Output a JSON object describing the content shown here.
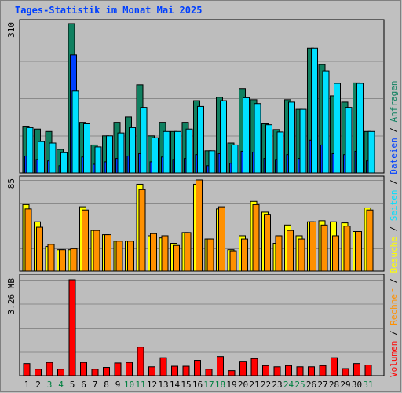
{
  "page": {
    "title": "Tages-Statistik im Monat Mai 2025"
  },
  "colors": {
    "background": "#c0c0c0",
    "plot": "#bdbdbd",
    "grid": "#8a8a8a",
    "anfragen": "#108060",
    "dateien": "#0040ff",
    "seiten": "#00e0ff",
    "besuche": "#ffff00",
    "rechner": "#ff9000",
    "volumen": "#ff0000",
    "weekday_label": "#000000",
    "weekend_label": "#008040"
  },
  "chart_data": [
    {
      "type": "bar",
      "name": "hits-panel",
      "ymax_label": "310",
      "ylim": [
        0,
        310
      ],
      "x": [
        "1",
        "2",
        "3",
        "4",
        "5",
        "6",
        "7",
        "8",
        "9",
        "10",
        "11",
        "12",
        "13",
        "14",
        "15",
        "16",
        "17",
        "18",
        "19",
        "20",
        "21",
        "22",
        "23",
        "24",
        "25",
        "26",
        "27",
        "28",
        "29",
        "30",
        "31"
      ],
      "series": [
        {
          "name": "Anfragen",
          "color": "#108060",
          "values": [
            97,
            91,
            86,
            49,
            310,
            105,
            58,
            77,
            105,
            116,
            183,
            77,
            105,
            86,
            105,
            150,
            46,
            157,
            62,
            175,
            152,
            102,
            90,
            152,
            132,
            259,
            225,
            160,
            147,
            187,
            86
          ]
        },
        {
          "name": "Dateien",
          "color": "#0040ff",
          "values": [
            35,
            28,
            25,
            15,
            245,
            33,
            18,
            23,
            30,
            35,
            40,
            23,
            33,
            28,
            30,
            38,
            15,
            40,
            20,
            45,
            43,
            30,
            28,
            38,
            30,
            68,
            58,
            40,
            38,
            45,
            25
          ]
        },
        {
          "name": "Seiten",
          "color": "#00e0ff",
          "values": [
            94,
            65,
            62,
            42,
            170,
            102,
            54,
            77,
            83,
            94,
            136,
            73,
            86,
            86,
            91,
            138,
            46,
            150,
            58,
            156,
            144,
            100,
            85,
            147,
            132,
            259,
            212,
            186,
            136,
            186,
            86
          ]
        }
      ]
    },
    {
      "type": "bar",
      "name": "visits-panel",
      "ymax_label": "85",
      "ylim": [
        0,
        85
      ],
      "series": [
        {
          "name": "Besuche",
          "color": "#ffff00",
          "values": [
            62,
            46,
            23,
            20,
            20,
            60,
            38,
            34,
            28,
            28,
            81,
            33,
            31,
            26,
            36,
            81,
            30,
            58,
            20,
            33,
            65,
            55,
            26,
            43,
            33,
            46,
            47,
            46,
            45,
            37,
            59
          ]
        },
        {
          "name": "Rechner",
          "color": "#ff9000",
          "values": [
            58,
            41,
            25,
            20,
            21,
            57,
            38,
            34,
            28,
            28,
            76,
            35,
            33,
            24,
            36,
            85,
            30,
            60,
            19,
            30,
            62,
            53,
            33,
            38,
            30,
            46,
            43,
            33,
            42,
            37,
            57
          ]
        }
      ]
    },
    {
      "type": "bar",
      "name": "volume-panel",
      "ymax_label": "3.26 MB",
      "ylim": [
        0,
        3.26
      ],
      "series": [
        {
          "name": "Volumen",
          "color": "#ff0000",
          "values": [
            0.41,
            0.22,
            0.45,
            0.22,
            3.26,
            0.45,
            0.22,
            0.28,
            0.43,
            0.45,
            0.97,
            0.3,
            0.61,
            0.32,
            0.32,
            0.52,
            0.22,
            0.65,
            0.17,
            0.49,
            0.58,
            0.34,
            0.3,
            0.34,
            0.3,
            0.3,
            0.34,
            0.61,
            0.24,
            0.41,
            0.36
          ]
        }
      ]
    }
  ],
  "x_labels": [
    {
      "label": "1",
      "weekend": false
    },
    {
      "label": "2",
      "weekend": false
    },
    {
      "label": "3",
      "weekend": true
    },
    {
      "label": "4",
      "weekend": true
    },
    {
      "label": "5",
      "weekend": false
    },
    {
      "label": "6",
      "weekend": false
    },
    {
      "label": "7",
      "weekend": false
    },
    {
      "label": "8",
      "weekend": false
    },
    {
      "label": "9",
      "weekend": false
    },
    {
      "label": "10",
      "weekend": true
    },
    {
      "label": "11",
      "weekend": true
    },
    {
      "label": "12",
      "weekend": false
    },
    {
      "label": "13",
      "weekend": false
    },
    {
      "label": "14",
      "weekend": false
    },
    {
      "label": "15",
      "weekend": false
    },
    {
      "label": "16",
      "weekend": false
    },
    {
      "label": "17",
      "weekend": true
    },
    {
      "label": "18",
      "weekend": true
    },
    {
      "label": "19",
      "weekend": false
    },
    {
      "label": "20",
      "weekend": false
    },
    {
      "label": "21",
      "weekend": false
    },
    {
      "label": "22",
      "weekend": false
    },
    {
      "label": "23",
      "weekend": false
    },
    {
      "label": "24",
      "weekend": true
    },
    {
      "label": "25",
      "weekend": true
    },
    {
      "label": "26",
      "weekend": false
    },
    {
      "label": "27",
      "weekend": false
    },
    {
      "label": "28",
      "weekend": false
    },
    {
      "label": "29",
      "weekend": false
    },
    {
      "label": "30",
      "weekend": false
    },
    {
      "label": "31",
      "weekend": true
    }
  ],
  "legend": [
    {
      "text": "Volumen",
      "color": "#ff0000"
    },
    {
      "text": "Rechner",
      "color": "#ff9000"
    },
    {
      "text": "Besuche",
      "color": "#ffff00"
    },
    {
      "text": "Seiten",
      "color": "#00e0ff"
    },
    {
      "text": "Dateien",
      "color": "#0040ff"
    },
    {
      "text": "Anfragen",
      "color": "#108060"
    }
  ],
  "legend_separator": " / "
}
